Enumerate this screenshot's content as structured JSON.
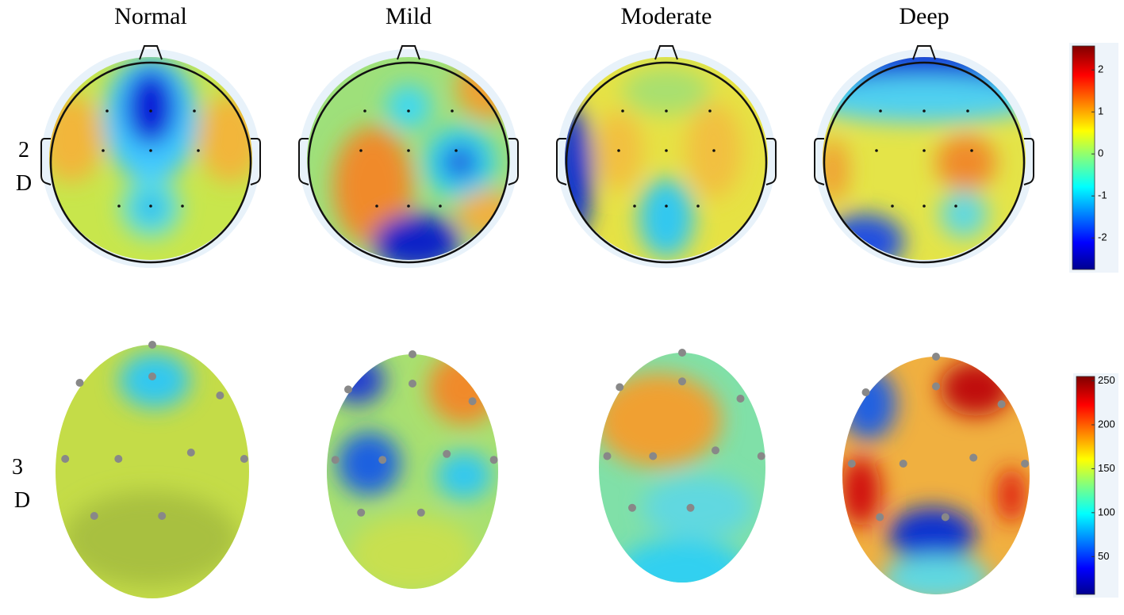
{
  "columns": [
    "Normal",
    "Mild",
    "Moderate",
    "Deep"
  ],
  "rows": [
    [
      "2",
      "D"
    ],
    [
      "3",
      "D"
    ]
  ],
  "colorbars": [
    {
      "lim": [
        -2.75,
        2.57
      ],
      "ticks": [
        2,
        1,
        0,
        -1,
        -2
      ]
    },
    {
      "lim": [
        7,
        255
      ],
      "ticks": [
        250,
        200,
        150,
        100,
        50
      ]
    }
  ]
}
